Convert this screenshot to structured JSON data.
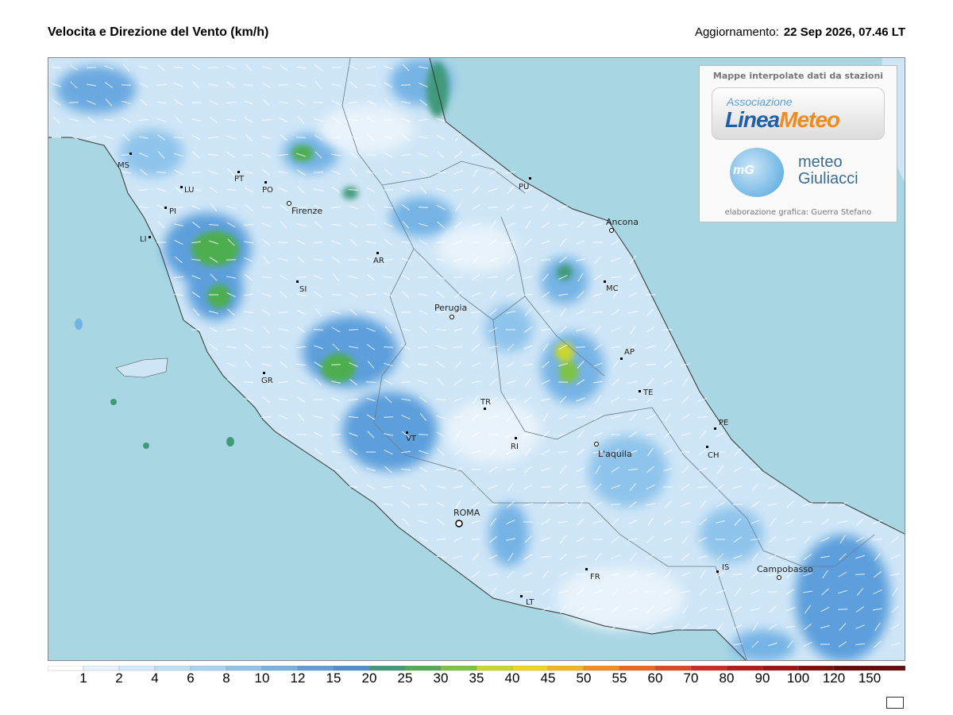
{
  "header": {
    "title": "Velocita e Direzione del Vento  (km/h)",
    "update_label": "Aggiornamento:",
    "update_value": "22 Sep 2026, 07.46 LT"
  },
  "logo": {
    "top_text": "Mappe interpolate dati da stazioni",
    "lineameteo_small": "Associazione",
    "lineameteo_big_1": "Linea",
    "lineameteo_big_2": "Meteo",
    "mg_initials": "mG",
    "giuliacci_1": "meteo",
    "giuliacci_2": "Giuliacci",
    "bottom_text": "elaborazione grafica: Guerra Stefano"
  },
  "cities": [
    {
      "name": "Firenze",
      "major": true
    },
    {
      "name": "Ancona",
      "major": true
    },
    {
      "name": "Perugia",
      "major": true
    },
    {
      "name": "L'aquila",
      "major": true
    },
    {
      "name": "ROMA",
      "major": true
    },
    {
      "name": "Campobasso",
      "major": true
    },
    {
      "name": "MS"
    },
    {
      "name": "LU"
    },
    {
      "name": "PI"
    },
    {
      "name": "LI"
    },
    {
      "name": "PT"
    },
    {
      "name": "PO"
    },
    {
      "name": "AR"
    },
    {
      "name": "SI"
    },
    {
      "name": "GR"
    },
    {
      "name": "VT"
    },
    {
      "name": "TR"
    },
    {
      "name": "RI"
    },
    {
      "name": "PU"
    },
    {
      "name": "MC"
    },
    {
      "name": "AP"
    },
    {
      "name": "TE"
    },
    {
      "name": "PE"
    },
    {
      "name": "CH"
    },
    {
      "name": "IS"
    },
    {
      "name": "FR"
    },
    {
      "name": "LT"
    }
  ],
  "legend": {
    "values": [
      "1",
      "2",
      "4",
      "6",
      "8",
      "10",
      "12",
      "15",
      "20",
      "25",
      "30",
      "35",
      "40",
      "45",
      "50",
      "55",
      "60",
      "70",
      "80",
      "90",
      "100",
      "120",
      "150"
    ],
    "colors": [
      "#ffffff",
      "#e8f3fb",
      "#d4eaf8",
      "#bfe0f5",
      "#a9d4f1",
      "#8fc4ec",
      "#74b3e5",
      "#5b9fdc",
      "#4a8fcf",
      "#3f9a7a",
      "#4eae4e",
      "#7fc342",
      "#c9d62e",
      "#f1d51f",
      "#f4b423",
      "#ef8e24",
      "#e86a22",
      "#dd4a1f",
      "#cc2d1d",
      "#b31c1c",
      "#9a1414",
      "#7e0e0e",
      "#660a0a"
    ]
  }
}
